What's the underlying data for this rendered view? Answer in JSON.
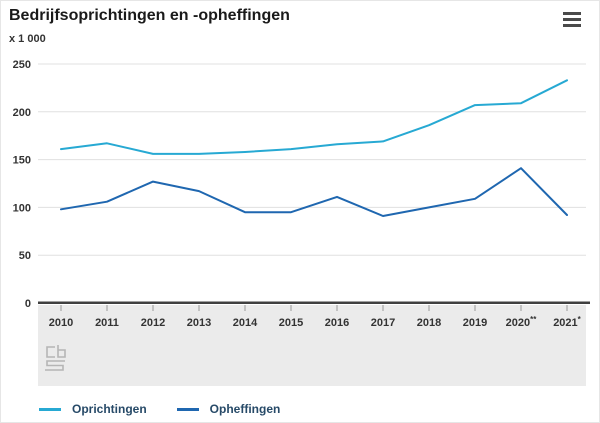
{
  "header": {
    "title": "Bedrijfsoprichtingen en -opheffingen",
    "unit_label": "x 1 000",
    "menu_icon": "hamburger-menu-icon"
  },
  "chart_data": {
    "type": "line",
    "title": "Bedrijfsoprichtingen en -opheffingen",
    "unit": "x 1 000",
    "categories": [
      "2010",
      "2011",
      "2012",
      "2013",
      "2014",
      "2015",
      "2016",
      "2017",
      "2018",
      "2019",
      "2020**",
      "2021*"
    ],
    "series": [
      {
        "name": "Oprichtingen",
        "color": "#27a9d3",
        "values": [
          161,
          167,
          156,
          156,
          158,
          161,
          166,
          169,
          186,
          207,
          209,
          233
        ]
      },
      {
        "name": "Opheffingen",
        "color": "#1f67b0",
        "values": [
          98,
          106,
          127,
          117,
          95,
          95,
          111,
          91,
          100,
          109,
          141,
          92
        ]
      }
    ],
    "ylim": [
      0,
      250
    ],
    "yticks": [
      0,
      50,
      100,
      150,
      200,
      250
    ],
    "grid": true,
    "legend_position": "bottom",
    "source_logo": "cbs-logo"
  },
  "colors": {
    "gridline": "#e0e0e0",
    "axis_line": "#404040",
    "axis_band": "#ebebeb",
    "tick": "#9a9a9a",
    "label": "#333333",
    "logo": "#b5b5b5"
  }
}
